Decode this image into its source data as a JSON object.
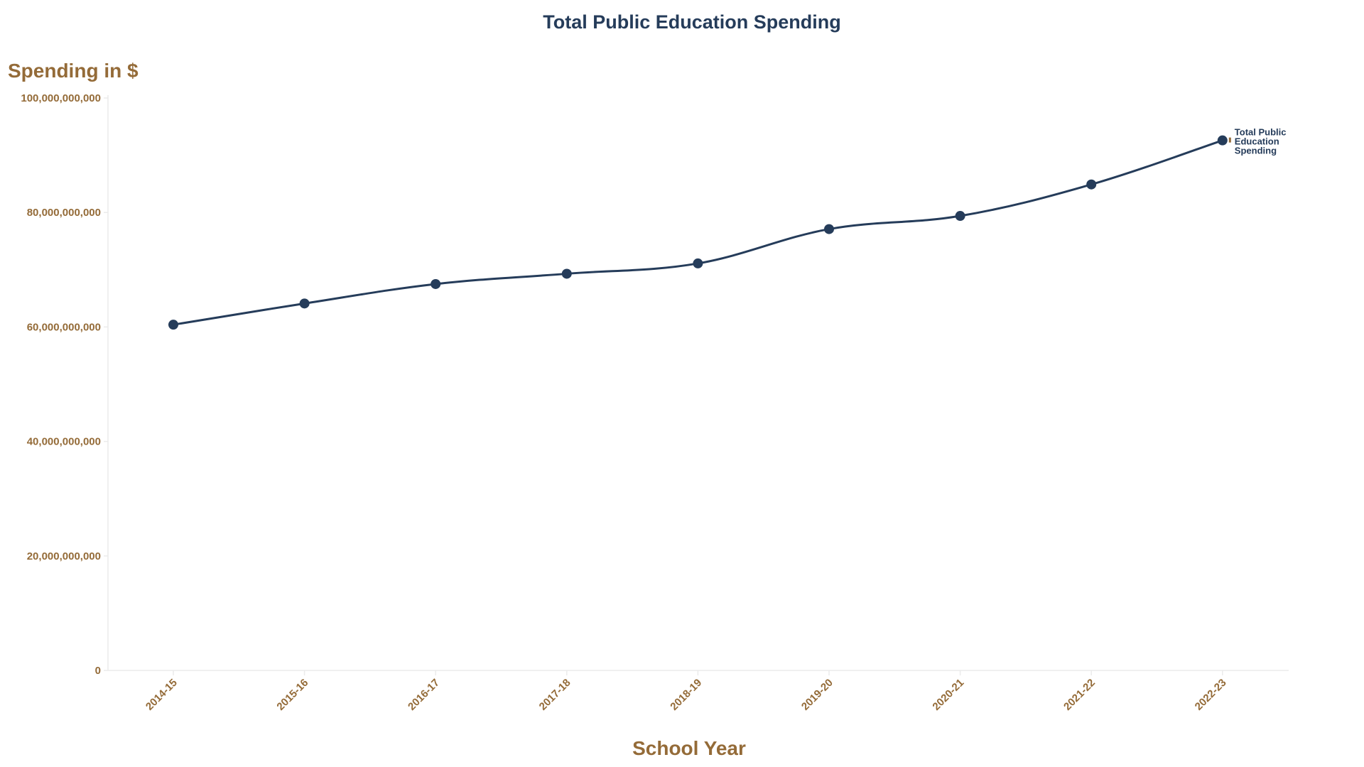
{
  "chart_data": {
    "type": "line",
    "title": "Total Public Education Spending",
    "xlabel": "School Year",
    "ylabel": "Spending in $",
    "categories": [
      "2014-15",
      "2015-16",
      "2016-17",
      "2017-18",
      "2018-19",
      "2019-20",
      "2020-21",
      "2021-22",
      "2022-23"
    ],
    "series": [
      {
        "name": "Total Public Education Spending",
        "color": "#253c5a",
        "values": [
          60400000000,
          64100000000,
          67500000000,
          69300000000,
          71100000000,
          77100000000,
          79400000000,
          84900000000,
          92600000000
        ]
      }
    ],
    "ylim": [
      0,
      100000000000
    ],
    "yticks": [
      0,
      20000000000,
      40000000000,
      60000000000,
      80000000000,
      100000000000
    ],
    "ytick_labels": [
      "0",
      "20,000,000,000",
      "40,000,000,000",
      "60,000,000,000",
      "80,000,000,000",
      "100,000,000,000"
    ],
    "grid": false,
    "legend_position": "inline-end-label",
    "series_label_lines": [
      "Total Public",
      "Education",
      "Spending"
    ]
  },
  "colors": {
    "title": "#253c5a",
    "axis_text": "#946b38",
    "line": "#253c5a",
    "axis_line": "#ebebeb",
    "label_marker": "#946b38"
  }
}
